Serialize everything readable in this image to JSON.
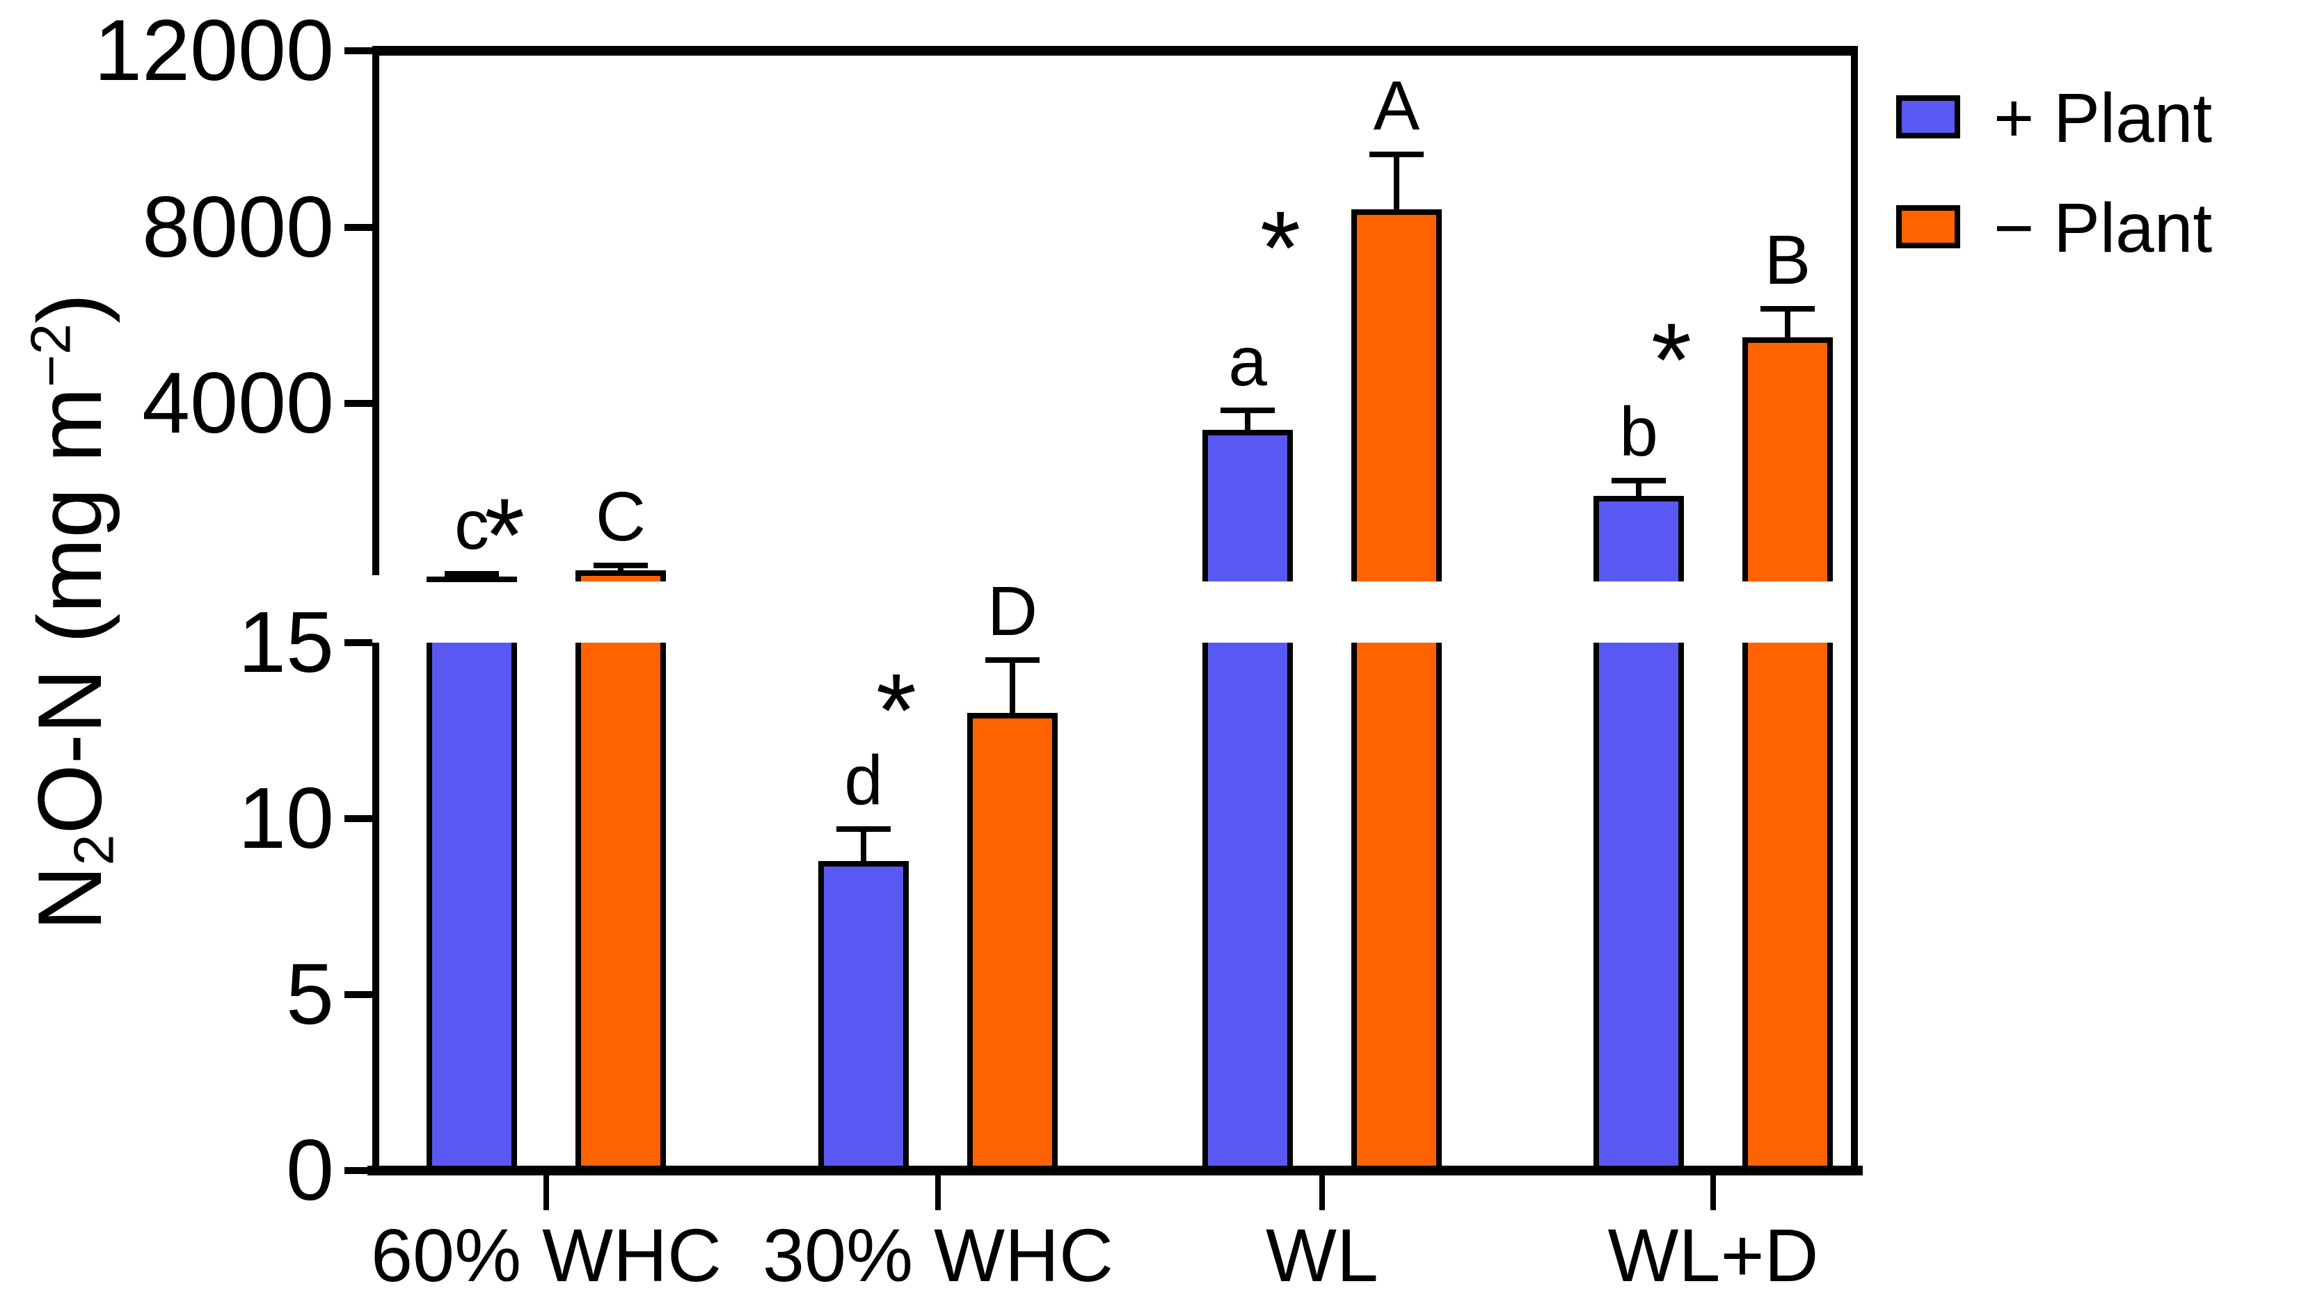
{
  "figure": {
    "kind": "grouped bar chart with broken y-axis",
    "background": "#ffffff",
    "accent_black": "#000000"
  },
  "chart_data": {
    "type": "bar",
    "title": "",
    "xlabel": "",
    "ylabel": "N2O-N (mg m-2)",
    "ylabel_parts": {
      "pre": "N",
      "sub": "2",
      "mid": "O-N (mg m",
      "sup": "−2",
      "post": ")"
    },
    "categories": [
      "60% WHC",
      "30% WHC",
      "WL",
      "WL+D"
    ],
    "series": [
      {
        "name": "+ Plant",
        "color": "#5A58F2",
        "values": [
          70,
          8.8,
          3400,
          1900
        ],
        "errors": [
          60,
          0.9,
          450,
          350
        ],
        "letters": [
          "c",
          "d",
          "a",
          "b"
        ]
      },
      {
        "name": "− Plant",
        "color": "#FF6200",
        "values": [
          210,
          13,
          8400,
          5500
        ],
        "errors": [
          110,
          1.5,
          1250,
          650
        ],
        "letters": [
          "C",
          "D",
          "A",
          "B"
        ]
      }
    ],
    "significance": [
      "*",
      "*",
      "*",
      "*"
    ],
    "axis": {
      "broken": true,
      "note": "60% WHC bars exceed the lower segment and are clipped at the axis break",
      "lower_range": [
        0,
        15
      ],
      "lower_ticks": [
        0,
        5,
        10,
        15
      ],
      "lower_tick_labels": [
        "0",
        "5",
        "10",
        "15"
      ],
      "upper_range": [
        0,
        12000
      ],
      "upper_ticks": [
        4000,
        8000,
        12000
      ],
      "upper_tick_labels": [
        "4000",
        "8000",
        "12000"
      ]
    },
    "legend_position": "top-right",
    "grid": false
  },
  "legend": {
    "items": [
      {
        "label": "+ Plant",
        "color": "#5A58F2"
      },
      {
        "label": "− Plant",
        "color": "#FF6200"
      }
    ]
  }
}
